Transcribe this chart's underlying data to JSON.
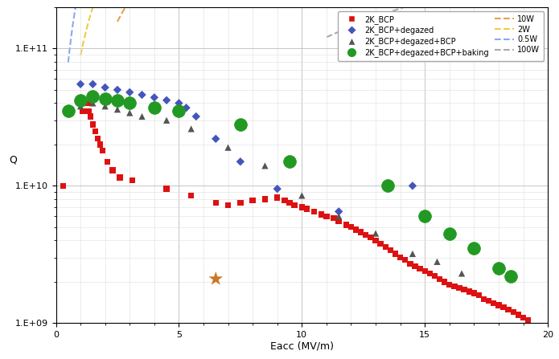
{
  "xlabel": "Eacc (MV/m)",
  "ylabel": "Q",
  "xlim": [
    0,
    20
  ],
  "ylim_log": [
    1000000000.0,
    200000000000.0
  ],
  "yticks": [
    1000000000.0,
    10000000000.0,
    100000000000.0
  ],
  "ytick_labels": [
    "1.E+09",
    "1.E+10",
    "1.E+11"
  ],
  "xticks": [
    0,
    5,
    10,
    15,
    20
  ],
  "bg_color": "#ffffff",
  "bcp": {
    "color": "#dd1111",
    "marker": "s",
    "size": 28,
    "x": [
      0.3,
      1.1,
      1.3,
      1.35,
      1.4,
      1.5,
      1.6,
      1.7,
      1.8,
      1.9,
      2.1,
      2.3,
      2.6,
      3.1,
      4.5,
      5.5,
      6.5,
      7.0,
      7.5,
      8.0,
      8.5,
      9.0,
      9.3,
      9.5,
      9.7,
      10.0,
      10.2,
      10.5,
      10.8,
      11.0,
      11.3,
      11.5,
      11.8,
      12.0,
      12.2,
      12.4,
      12.6,
      12.8,
      13.0,
      13.2,
      13.4,
      13.6,
      13.8,
      14.0,
      14.2,
      14.4,
      14.6,
      14.8,
      15.0,
      15.2,
      15.4,
      15.6,
      15.8,
      16.0,
      16.2,
      16.4,
      16.6,
      16.8,
      17.0,
      17.2,
      17.4,
      17.6,
      17.8,
      18.0,
      18.2,
      18.4,
      18.6,
      18.8,
      19.0,
      19.2
    ],
    "y": [
      10000000000.0,
      35000000000.0,
      40000000000.0,
      35000000000.0,
      32000000000.0,
      28000000000.0,
      25000000000.0,
      22000000000.0,
      20000000000.0,
      18000000000.0,
      15000000000.0,
      13000000000.0,
      11500000000.0,
      11000000000.0,
      9500000000.0,
      8500000000.0,
      7500000000.0,
      7200000000.0,
      7500000000.0,
      7800000000.0,
      8000000000.0,
      8200000000.0,
      7800000000.0,
      7500000000.0,
      7200000000.0,
      7000000000.0,
      6800000000.0,
      6500000000.0,
      6200000000.0,
      6000000000.0,
      5800000000.0,
      5500000000.0,
      5200000000.0,
      5000000000.0,
      4800000000.0,
      4600000000.0,
      4400000000.0,
      4200000000.0,
      4000000000.0,
      3800000000.0,
      3600000000.0,
      3400000000.0,
      3200000000.0,
      3000000000.0,
      2900000000.0,
      2700000000.0,
      2600000000.0,
      2500000000.0,
      2400000000.0,
      2300000000.0,
      2200000000.0,
      2100000000.0,
      2000000000.0,
      1900000000.0,
      1850000000.0,
      1800000000.0,
      1750000000.0,
      1700000000.0,
      1650000000.0,
      1600000000.0,
      1500000000.0,
      1450000000.0,
      1400000000.0,
      1350000000.0,
      1300000000.0,
      1250000000.0,
      1200000000.0,
      1150000000.0,
      1100000000.0,
      1050000000.0
    ]
  },
  "degazed": {
    "color": "#4455bb",
    "marker": "D",
    "size": 28,
    "x": [
      1.0,
      1.5,
      2.0,
      2.5,
      3.0,
      3.5,
      4.0,
      4.5,
      5.0,
      5.3,
      5.7,
      6.5,
      7.5,
      9.0,
      11.5,
      14.5
    ],
    "y": [
      55000000000.0,
      55000000000.0,
      52000000000.0,
      50000000000.0,
      48000000000.0,
      46000000000.0,
      44000000000.0,
      42000000000.0,
      40000000000.0,
      37000000000.0,
      32000000000.0,
      22000000000.0,
      15000000000.0,
      9500000000.0,
      6500000000.0,
      10000000000.0
    ]
  },
  "degazed_bcp": {
    "color": "#555555",
    "marker": "^",
    "size": 35,
    "x": [
      1.0,
      1.5,
      2.0,
      2.5,
      3.0,
      3.5,
      4.5,
      5.5,
      7.0,
      8.5,
      10.0,
      11.5,
      13.0,
      14.5,
      15.5,
      16.5
    ],
    "y": [
      38000000000.0,
      40000000000.0,
      38000000000.0,
      36000000000.0,
      34000000000.0,
      32000000000.0,
      30000000000.0,
      26000000000.0,
      19000000000.0,
      14000000000.0,
      8500000000.0,
      6000000000.0,
      4500000000.0,
      3200000000.0,
      2800000000.0,
      2300000000.0
    ]
  },
  "baking": {
    "color": "#229922",
    "marker": "o",
    "size": 130,
    "x": [
      0.5,
      1.0,
      1.5,
      2.0,
      2.5,
      3.0,
      4.0,
      5.0,
      7.5,
      9.5,
      13.5,
      15.0,
      16.0,
      17.0,
      18.0,
      18.5
    ],
    "y": [
      35000000000.0,
      42000000000.0,
      45000000000.0,
      43000000000.0,
      42000000000.0,
      40000000000.0,
      37000000000.0,
      35000000000.0,
      28000000000.0,
      15000000000.0,
      10000000000.0,
      6000000000.0,
      4500000000.0,
      3500000000.0,
      2500000000.0,
      2200000000.0
    ]
  },
  "star_x": 6.5,
  "star_y": 2100000000.0,
  "star_color": "#cc7722",
  "power_lines": [
    {
      "label": "10W",
      "color": "#e8a050",
      "lw": 1.5,
      "x0": 2.5,
      "x1": 20.0,
      "log_int": 10.4
    },
    {
      "label": "2W",
      "color": "#eecc44",
      "lw": 1.5,
      "x0": 1.0,
      "x1": 20.0,
      "log_int": 10.95
    },
    {
      "label": "0.5W",
      "color": "#88aaee",
      "lw": 1.5,
      "x0": 0.5,
      "x1": 8.5,
      "log_int": 11.5
    },
    {
      "label": "100W",
      "color": "#aaaaaa",
      "lw": 1.5,
      "x0": 11.0,
      "x1": 20.0,
      "log_int": 9.0
    }
  ]
}
